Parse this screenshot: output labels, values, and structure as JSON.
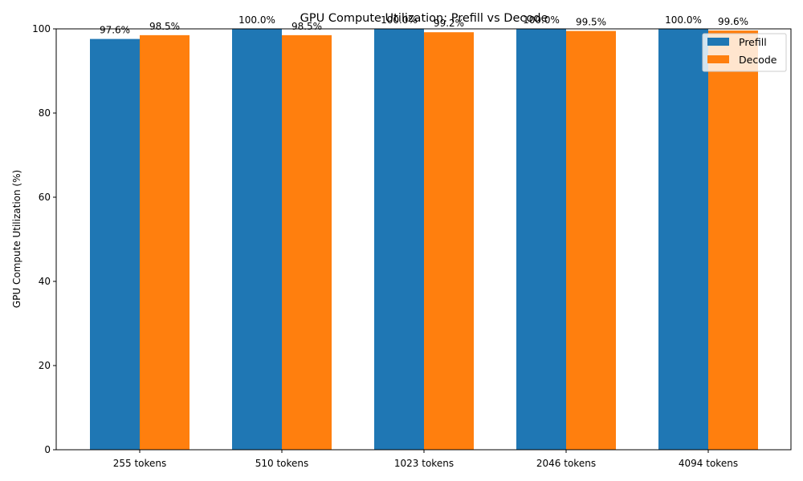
{
  "chart_data": {
    "type": "bar",
    "title": "GPU Compute Utilization: Prefill vs Decode",
    "xlabel": "",
    "ylabel": "GPU Compute Utilization (%)",
    "ylim": [
      0,
      100
    ],
    "yticks": [
      0,
      20,
      40,
      60,
      80,
      100
    ],
    "categories": [
      "255 tokens",
      "510 tokens",
      "1023 tokens",
      "2046 tokens",
      "4094 tokens"
    ],
    "series": [
      {
        "name": "Prefill",
        "color": "#1f77b4",
        "values": [
          97.6,
          100.0,
          100.0,
          100.0,
          100.0
        ],
        "labels": [
          "97.6%",
          "100.0%",
          "100.0%",
          "100.0%",
          "100.0%"
        ]
      },
      {
        "name": "Decode",
        "color": "#ff7f0e",
        "values": [
          98.5,
          98.5,
          99.2,
          99.5,
          99.6
        ],
        "labels": [
          "98.5%",
          "98.5%",
          "99.2%",
          "99.5%",
          "99.6%"
        ]
      }
    ],
    "grid": false,
    "legend_position": "top-right"
  }
}
